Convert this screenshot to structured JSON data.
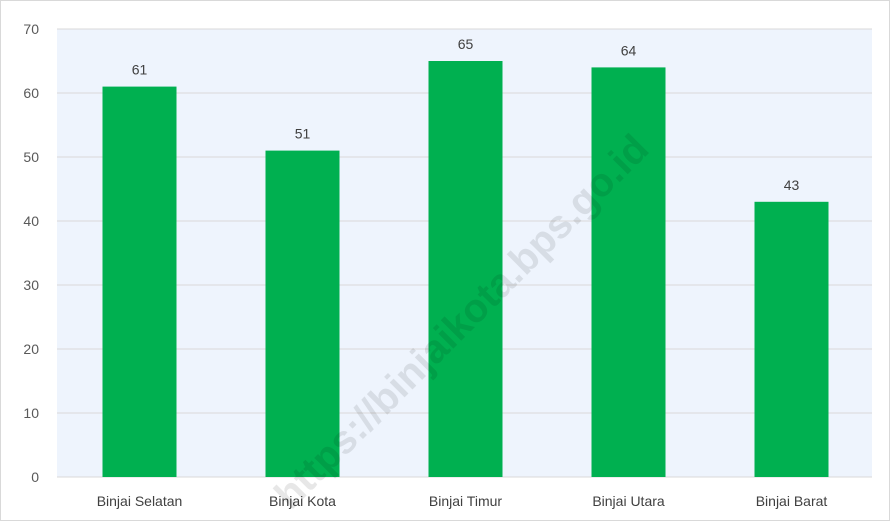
{
  "chart_data": {
    "type": "bar",
    "categories": [
      "Binjai Selatan",
      "Binjai Kota",
      "Binjai Timur",
      "Binjai Utara",
      "Binjai Barat"
    ],
    "values": [
      61,
      51,
      65,
      64,
      43
    ],
    "data_labels": [
      "61",
      "51",
      "65",
      "64",
      "43"
    ],
    "title": "",
    "xlabel": "",
    "ylabel": "",
    "ylim": [
      0,
      70
    ],
    "yticks": [
      0,
      10,
      20,
      30,
      40,
      50,
      60,
      70
    ],
    "grid": true,
    "legend": "none",
    "bar_color": "#00B050",
    "plot_background": "#EEF4FD"
  },
  "watermark": "https://binjaikota.bps.go.id"
}
